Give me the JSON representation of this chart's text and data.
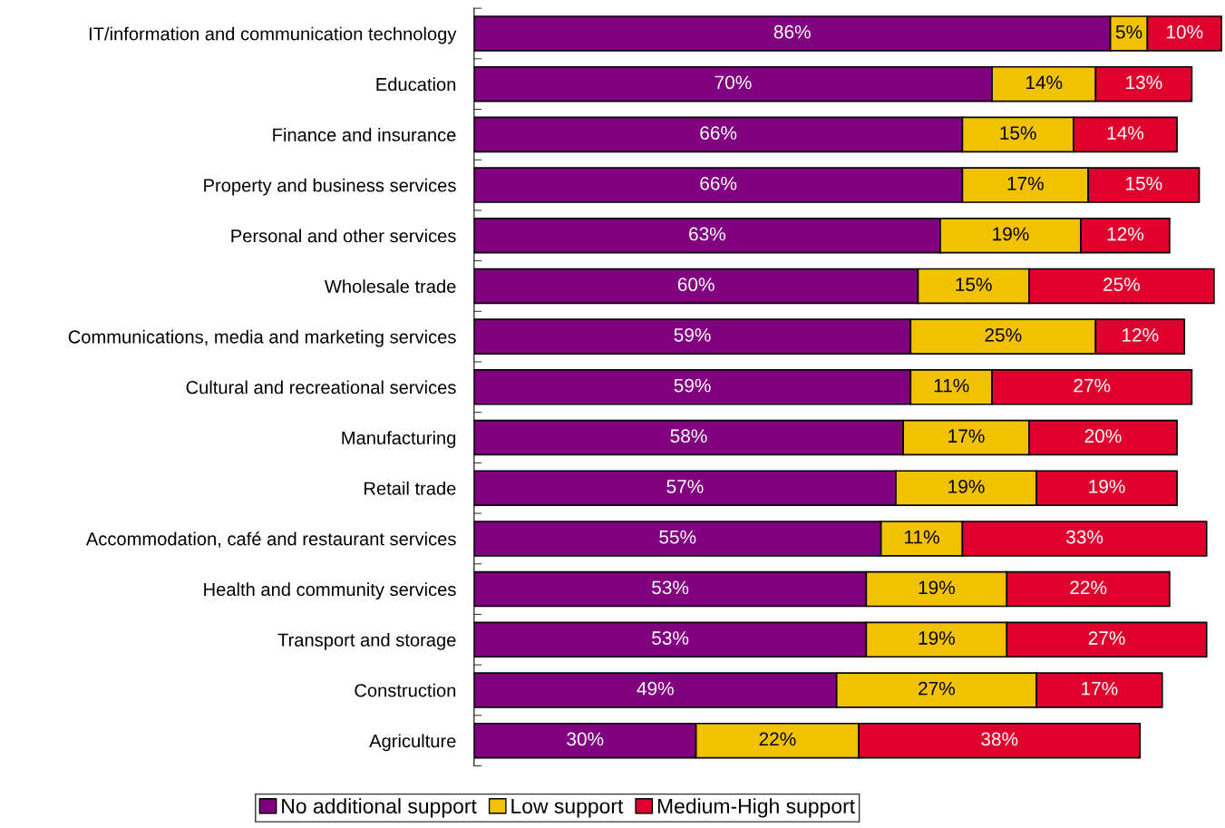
{
  "chart_data": {
    "type": "bar",
    "orientation": "horizontal",
    "stacked": true,
    "legend": "bottom",
    "grid": false,
    "tick_labels": "y",
    "categories": [
      "IT/information and communication technology",
      "Education",
      "Finance and insurance",
      "Property and business services",
      "Personal and other services",
      "Wholesale trade",
      "Communications, media and marketing services",
      "Cultural and recreational services",
      "Manufacturing",
      "Retail trade",
      "Accommodation, café and restaurant services",
      "Health and community services",
      "Transport and storage",
      "Construction",
      "Agriculture"
    ],
    "series": [
      {
        "name": "No additional support",
        "color": "#800080",
        "values": [
          86,
          70,
          66,
          66,
          63,
          60,
          59,
          59,
          58,
          57,
          55,
          53,
          53,
          49,
          30
        ],
        "value_labels": [
          "86%",
          "70%",
          "66%",
          "66%",
          "63%",
          "60%",
          "59%",
          "59%",
          "58%",
          "57%",
          "55%",
          "53%",
          "53%",
          "49%",
          "30%"
        ]
      },
      {
        "name": "Low support",
        "color": "#f2c200",
        "values": [
          5,
          14,
          15,
          17,
          19,
          15,
          25,
          11,
          17,
          19,
          11,
          19,
          19,
          27,
          22
        ],
        "value_labels": [
          "5%",
          "14%",
          "15%",
          "17%",
          "19%",
          "15%",
          "25%",
          "11%",
          "17%",
          "19%",
          "11%",
          "19%",
          "19%",
          "27%",
          "22%"
        ]
      },
      {
        "name": "Medium-High support",
        "color": "#e0002e",
        "values": [
          10,
          13,
          14,
          15,
          12,
          25,
          12,
          27,
          20,
          19,
          33,
          22,
          27,
          17,
          38
        ],
        "value_labels": [
          "10%",
          "13%",
          "14%",
          "15%",
          "12%",
          "25%",
          "12%",
          "27%",
          "20%",
          "19%",
          "33%",
          "22%",
          "27%",
          "17%",
          "38%"
        ]
      }
    ]
  }
}
